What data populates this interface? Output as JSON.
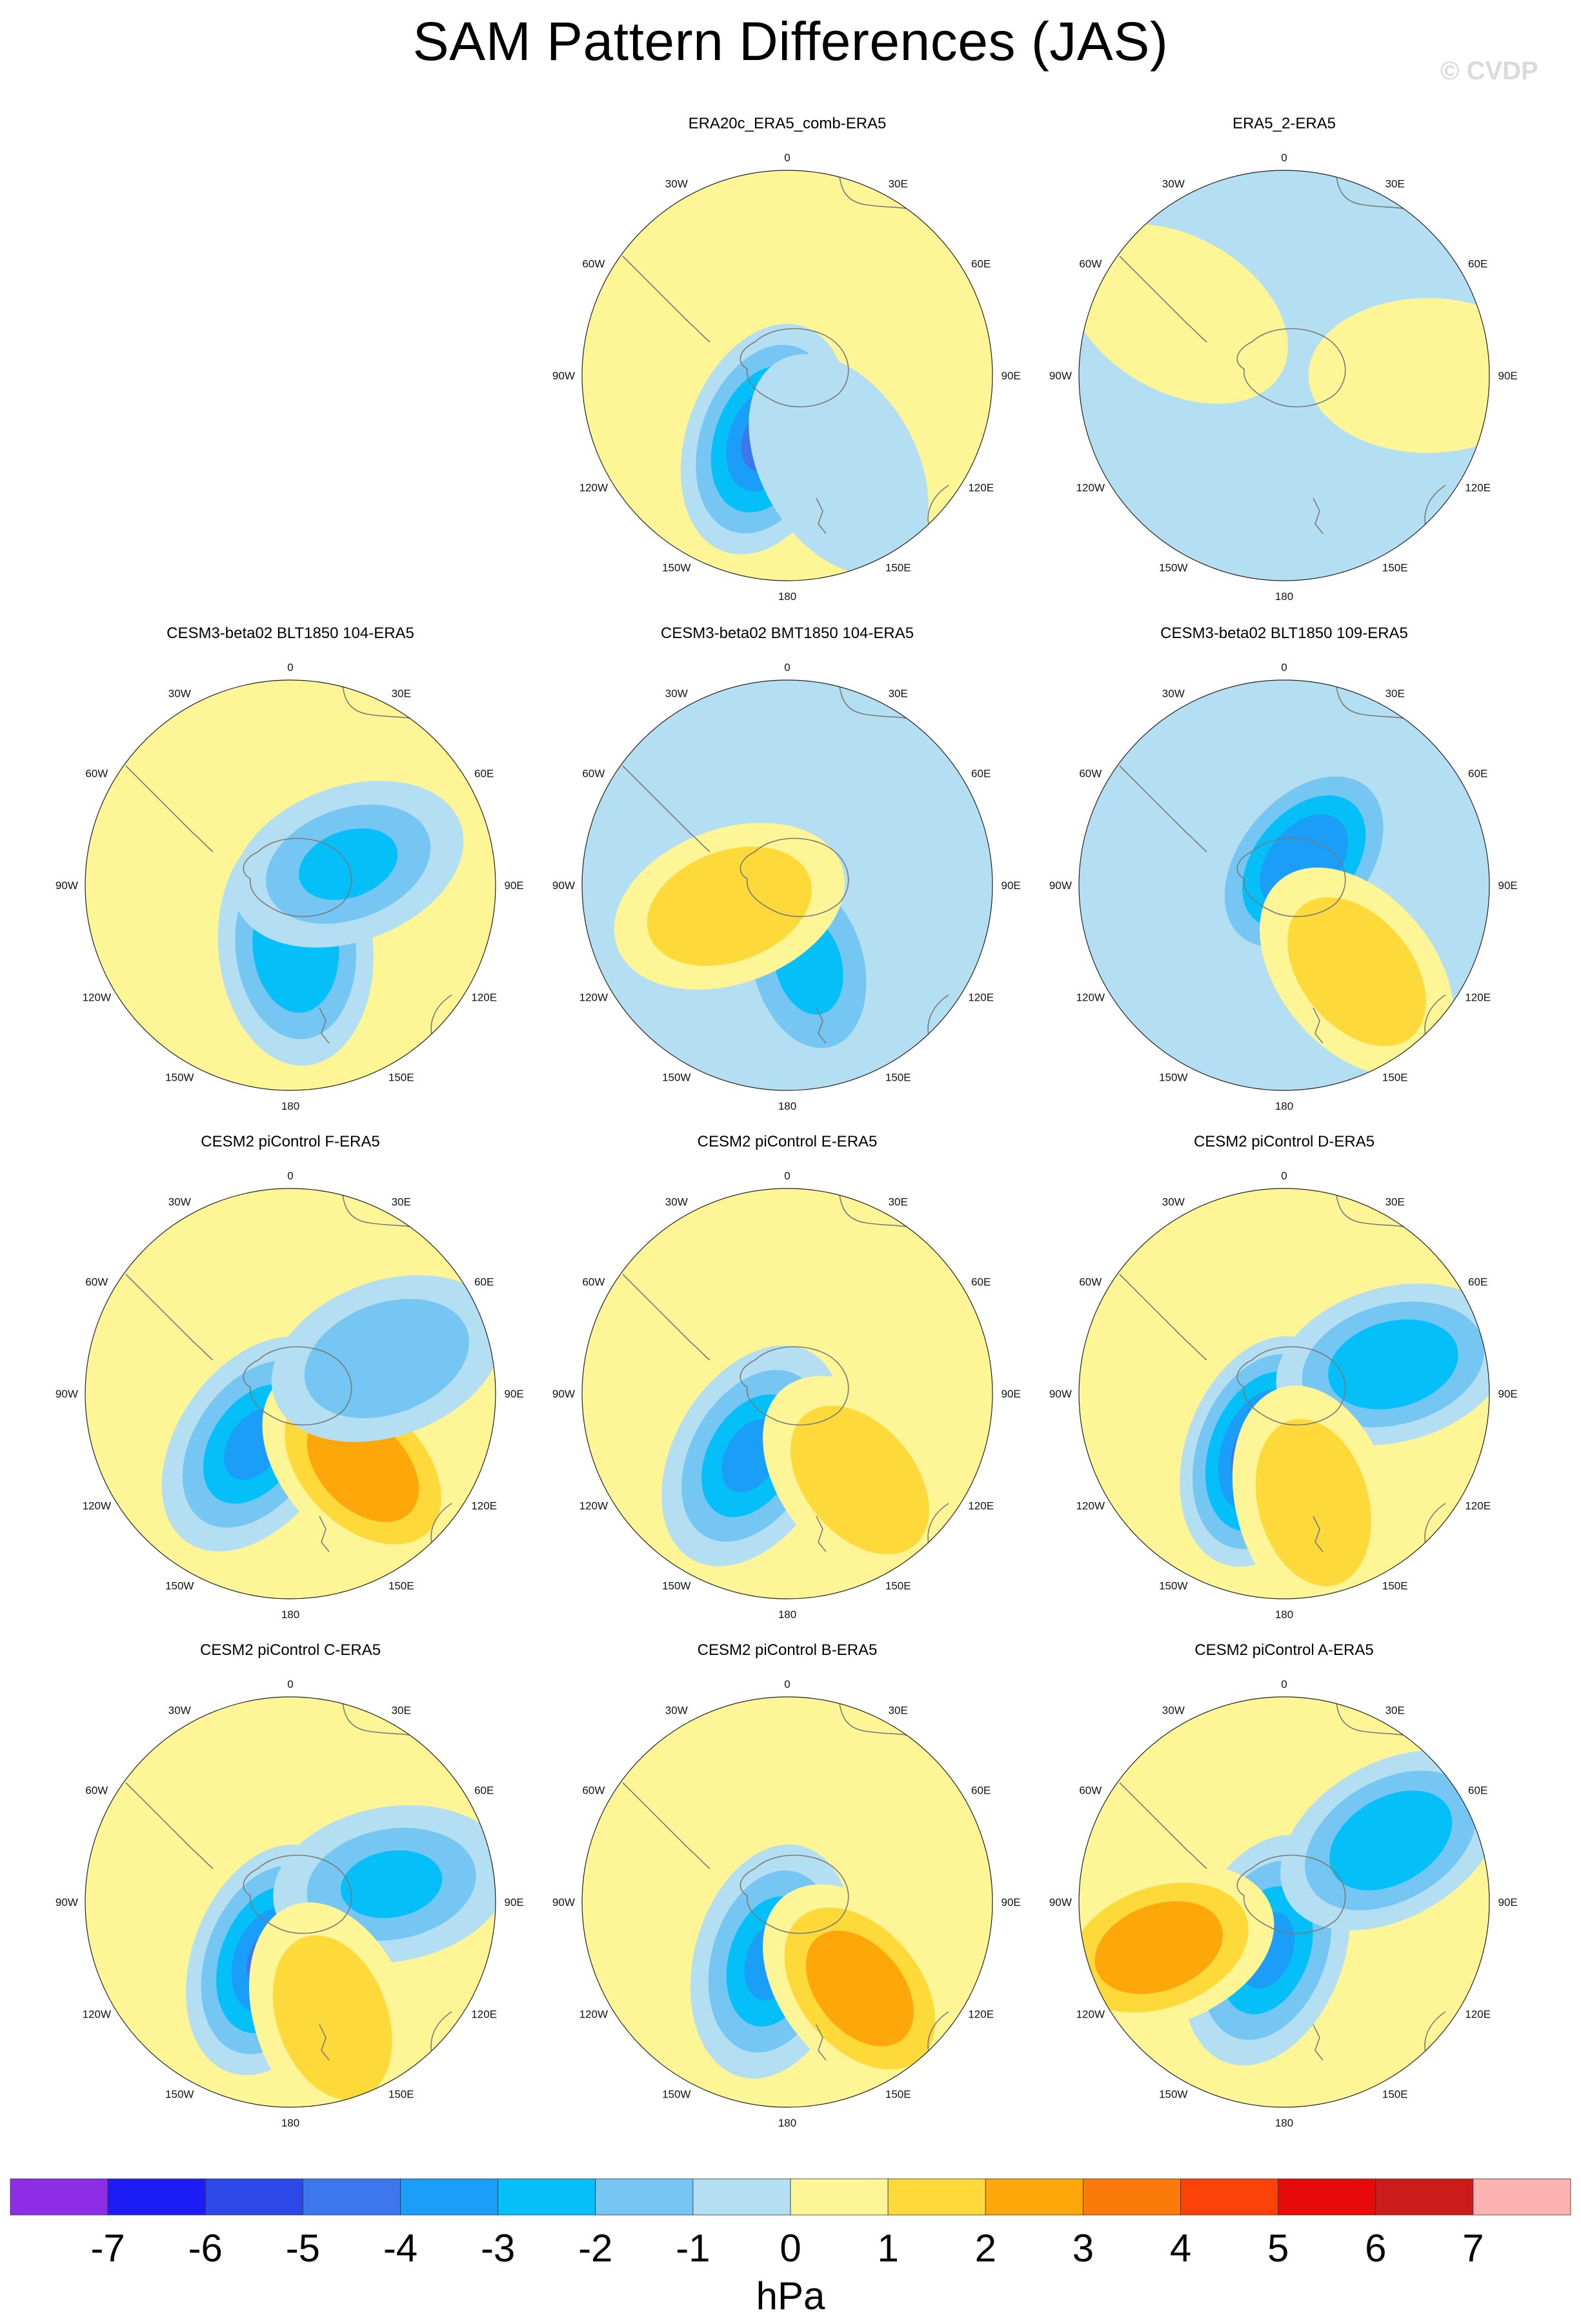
{
  "title": "SAM Pattern Differences (JAS)",
  "watermark": "© CVDP",
  "colors": {
    "land_outline": "#7a7a7a",
    "map_border": "#222222",
    "levels": [
      "#8d2ee6",
      "#1c1cf5",
      "#2c48e8",
      "#3c77ee",
      "#1a9ef8",
      "#05bff8",
      "#75c6f2",
      "#b4dff2",
      "#fdf596",
      "#fdd93a",
      "#fea70a",
      "#fb7a0a",
      "#fb4208",
      "#e60a0a",
      "#cc1b1b",
      "#fdb2b2"
    ]
  },
  "colorbar": {
    "labels": [
      "-7",
      "-6",
      "-5",
      "-4",
      "-3",
      "-2",
      "-1",
      "0",
      "1",
      "2",
      "3",
      "4",
      "5",
      "6",
      "7"
    ],
    "units": "hPa"
  },
  "map_labels": {
    "top": "0",
    "bottom": "180",
    "left": "90W",
    "right": "90E",
    "upper_left_inner": "30W",
    "upper_left_outer": "60W",
    "upper_right_inner": "30E",
    "upper_right_outer": "60E",
    "lower_left_outer": "120W",
    "lower_left_inner": "150W",
    "lower_right_outer": "120E",
    "lower_right_inner": "150E"
  },
  "panels": [
    {
      "title": "ERA20c_ERA5_comb-ERA5",
      "anomalies": [
        {
          "a": 200,
          "r": 0.33,
          "v": -4
        },
        {
          "a": 150,
          "r": 0.5,
          "v": -0.5
        }
      ],
      "background": 0.5
    },
    {
      "title": "ERA5_2-ERA5",
      "anomalies": [
        {
          "a": 300,
          "r": 0.6,
          "v": 0.5
        },
        {
          "a": 90,
          "r": 0.7,
          "v": 0.5
        }
      ],
      "background": -0.5
    },
    {
      "title": "CESM3-beta02 BLT1850 104-ERA5",
      "anomalies": [
        {
          "a": 175,
          "r": 0.3,
          "v": -2.5
        },
        {
          "a": 70,
          "r": 0.3,
          "v": -2
        }
      ],
      "background": 0.5
    },
    {
      "title": "CESM3-beta02 BMT1850 104-ERA5",
      "anomalies": [
        {
          "a": 165,
          "r": 0.4,
          "v": -2
        },
        {
          "a": 250,
          "r": 0.3,
          "v": 1.5
        }
      ],
      "background": -0.5
    },
    {
      "title": "CESM3-beta02 BLT1850 109-ERA5",
      "anomalies": [
        {
          "a": 40,
          "r": 0.15,
          "v": -3.5
        },
        {
          "a": 140,
          "r": 0.55,
          "v": 1.5
        }
      ],
      "background": -0.5
    },
    {
      "title": "CESM2 piControl F-ERA5",
      "anomalies": [
        {
          "a": 215,
          "r": 0.3,
          "v": -3
        },
        {
          "a": 135,
          "r": 0.5,
          "v": 2.5
        },
        {
          "a": 70,
          "r": 0.5,
          "v": -1.5
        }
      ],
      "background": 0.5
    },
    {
      "title": "CESM2 piControl E-ERA5",
      "anomalies": [
        {
          "a": 210,
          "r": 0.35,
          "v": -3
        },
        {
          "a": 140,
          "r": 0.55,
          "v": 1.5
        }
      ],
      "background": 0.5
    },
    {
      "title": "CESM2 piControl D-ERA5",
      "anomalies": [
        {
          "a": 200,
          "r": 0.3,
          "v": -5
        },
        {
          "a": 75,
          "r": 0.55,
          "v": -2.5
        },
        {
          "a": 165,
          "r": 0.55,
          "v": 1.5
        }
      ],
      "background": 0.5
    },
    {
      "title": "CESM2 piControl C-ERA5",
      "anomalies": [
        {
          "a": 200,
          "r": 0.3,
          "v": -4
        },
        {
          "a": 80,
          "r": 0.5,
          "v": -2
        },
        {
          "a": 160,
          "r": 0.6,
          "v": 1.5
        }
      ],
      "background": 0.5
    },
    {
      "title": "CESM2 piControl B-ERA5",
      "anomalies": [
        {
          "a": 195,
          "r": 0.3,
          "v": -3
        },
        {
          "a": 140,
          "r": 0.55,
          "v": 2.5
        }
      ],
      "background": 0.5
    },
    {
      "title": "CESM2 piControl A-ERA5",
      "anomalies": [
        {
          "a": 200,
          "r": 0.25,
          "v": -3
        },
        {
          "a": 60,
          "r": 0.6,
          "v": -2.5
        },
        {
          "a": 250,
          "r": 0.65,
          "v": 2.5
        }
      ],
      "background": 0.5
    }
  ]
}
